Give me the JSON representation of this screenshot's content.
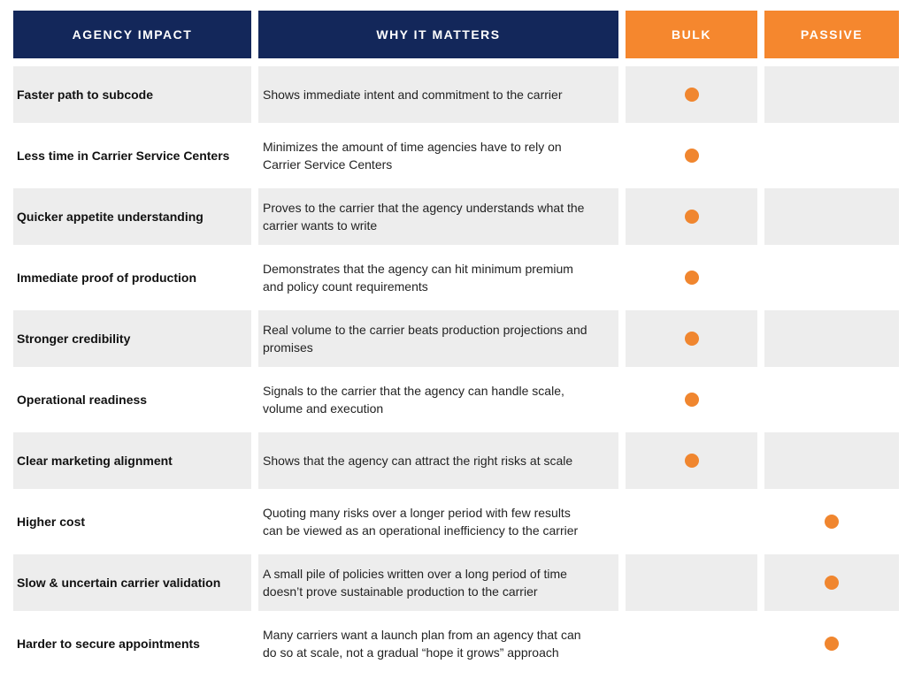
{
  "chart_data": {
    "type": "table",
    "title": "",
    "columns": [
      {
        "label": "AGENCY IMPACT"
      },
      {
        "label": "WHY IT MATTERS"
      },
      {
        "label": "BULK"
      },
      {
        "label": "PASSIVE"
      }
    ],
    "rows": [
      {
        "impact": "Faster path to subcode",
        "why": "Shows immediate intent and commitment to the carrier",
        "marked": "bulk"
      },
      {
        "impact": "Less time in Carrier Service Centers",
        "why": "Minimizes the amount of time agencies have to rely on\nCarrier Service Centers",
        "marked": "bulk"
      },
      {
        "impact": "Quicker appetite understanding",
        "why": "Proves to the carrier that the agency understands what the\ncarrier wants to write",
        "marked": "bulk"
      },
      {
        "impact": "Immediate proof of production",
        "why": "Demonstrates that the agency can hit minimum premium\nand policy count requirements",
        "marked": "bulk"
      },
      {
        "impact": "Stronger credibility",
        "why": "Real volume to the carrier beats production projections and\npromises",
        "marked": "bulk"
      },
      {
        "impact": "Operational readiness",
        "why": "Signals to the carrier that the agency can handle scale,\nvolume and execution",
        "marked": "bulk"
      },
      {
        "impact": "Clear marketing alignment",
        "why": "Shows that the agency can attract the right risks at scale",
        "marked": "bulk"
      },
      {
        "impact": "Higher cost",
        "why": "Quoting many risks over a longer period with few results\ncan be viewed as an operational inefficiency to the carrier",
        "marked": "passive"
      },
      {
        "impact": "Slow & uncertain carrier validation",
        "why": "A small pile of policies written over a long period of time\ndoesn’t prove sustainable production to the carrier",
        "marked": "passive"
      },
      {
        "impact": "Harder to secure appointments",
        "why": "Many carriers want a launch plan from an agency that can\ndo so at scale, not a gradual “hope it grows” approach",
        "marked": "passive"
      }
    ]
  },
  "colors": {
    "navy": "#13275A",
    "orange": "#F5872E",
    "row_gray": "#EDEDED",
    "dot": "#F0862F",
    "text_dark": "#111111",
    "text_body": "#232323"
  },
  "icons": {
    "bulk_marker": "orange-dot",
    "passive_marker": "orange-dot"
  }
}
